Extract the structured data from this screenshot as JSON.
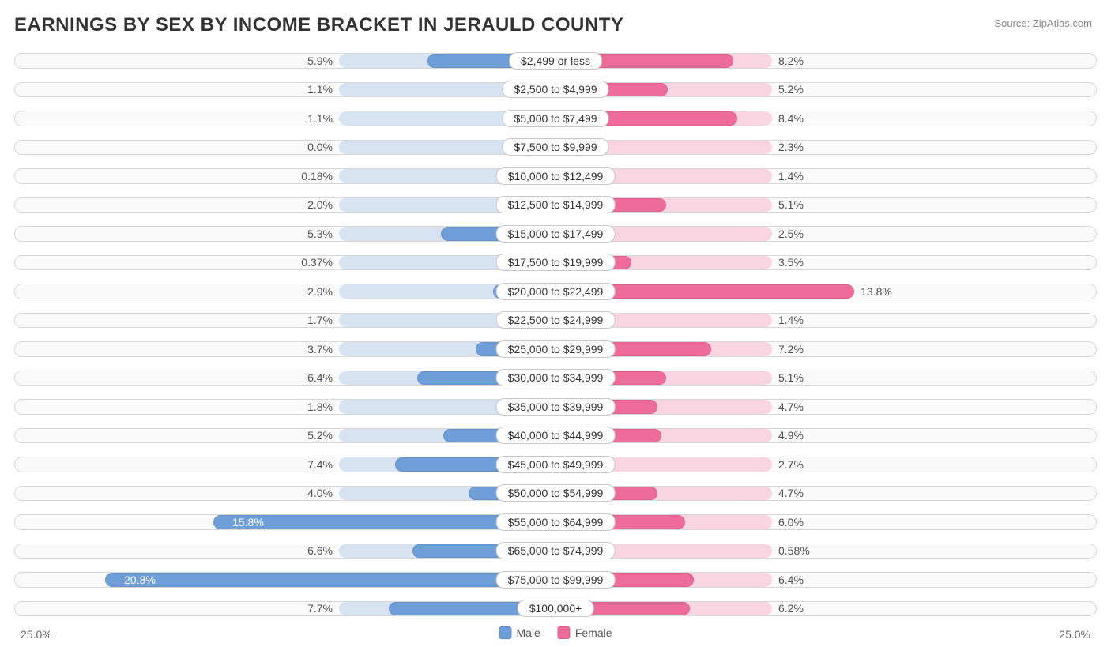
{
  "title": "EARNINGS BY SEX BY INCOME BRACKET IN JERAULD COUNTY",
  "source": "Source: ZipAtlas.com",
  "chart": {
    "type": "diverging-bar",
    "axis_max": 25.0,
    "axis_label_left": "25.0%",
    "axis_label_right": "25.0%",
    "base_bar_pct": 10.0,
    "colors": {
      "male_fill": "#6f9fd8",
      "male_base": "#b9cfe9",
      "female_fill": "#ed6c9a",
      "female_base": "#f6b6cc",
      "row_border": "#d8d8d8",
      "row_bg": "#fafafa",
      "label_border": "#c8c8c8",
      "text": "#333333",
      "pct_text": "#505050",
      "background": "#ffffff"
    },
    "legend": [
      {
        "label": "Male",
        "color": "#6f9fd8"
      },
      {
        "label": "Female",
        "color": "#ed6c9a"
      }
    ],
    "rows": [
      {
        "label": "$2,499 or less",
        "male": 5.9,
        "male_disp": "5.9%",
        "female": 8.2,
        "female_disp": "8.2%"
      },
      {
        "label": "$2,500 to $4,999",
        "male": 1.1,
        "male_disp": "1.1%",
        "female": 5.2,
        "female_disp": "5.2%"
      },
      {
        "label": "$5,000 to $7,499",
        "male": 1.1,
        "male_disp": "1.1%",
        "female": 8.4,
        "female_disp": "8.4%"
      },
      {
        "label": "$7,500 to $9,999",
        "male": 0.0,
        "male_disp": "0.0%",
        "female": 2.3,
        "female_disp": "2.3%"
      },
      {
        "label": "$10,000 to $12,499",
        "male": 0.18,
        "male_disp": "0.18%",
        "female": 1.4,
        "female_disp": "1.4%"
      },
      {
        "label": "$12,500 to $14,999",
        "male": 2.0,
        "male_disp": "2.0%",
        "female": 5.1,
        "female_disp": "5.1%"
      },
      {
        "label": "$15,000 to $17,499",
        "male": 5.3,
        "male_disp": "5.3%",
        "female": 2.5,
        "female_disp": "2.5%"
      },
      {
        "label": "$17,500 to $19,999",
        "male": 0.37,
        "male_disp": "0.37%",
        "female": 3.5,
        "female_disp": "3.5%"
      },
      {
        "label": "$20,000 to $22,499",
        "male": 2.9,
        "male_disp": "2.9%",
        "female": 13.8,
        "female_disp": "13.8%"
      },
      {
        "label": "$22,500 to $24,999",
        "male": 1.7,
        "male_disp": "1.7%",
        "female": 1.4,
        "female_disp": "1.4%"
      },
      {
        "label": "$25,000 to $29,999",
        "male": 3.7,
        "male_disp": "3.7%",
        "female": 7.2,
        "female_disp": "7.2%"
      },
      {
        "label": "$30,000 to $34,999",
        "male": 6.4,
        "male_disp": "6.4%",
        "female": 5.1,
        "female_disp": "5.1%"
      },
      {
        "label": "$35,000 to $39,999",
        "male": 1.8,
        "male_disp": "1.8%",
        "female": 4.7,
        "female_disp": "4.7%"
      },
      {
        "label": "$40,000 to $44,999",
        "male": 5.2,
        "male_disp": "5.2%",
        "female": 4.9,
        "female_disp": "4.9%"
      },
      {
        "label": "$45,000 to $49,999",
        "male": 7.4,
        "male_disp": "7.4%",
        "female": 2.7,
        "female_disp": "2.7%"
      },
      {
        "label": "$50,000 to $54,999",
        "male": 4.0,
        "male_disp": "4.0%",
        "female": 4.7,
        "female_disp": "4.7%"
      },
      {
        "label": "$55,000 to $64,999",
        "male": 15.8,
        "male_disp": "15.8%",
        "female": 6.0,
        "female_disp": "6.0%"
      },
      {
        "label": "$65,000 to $74,999",
        "male": 6.6,
        "male_disp": "6.6%",
        "female": 0.58,
        "female_disp": "0.58%"
      },
      {
        "label": "$75,000 to $99,999",
        "male": 20.8,
        "male_disp": "20.8%",
        "female": 6.4,
        "female_disp": "6.4%"
      },
      {
        "label": "$100,000+",
        "male": 7.7,
        "male_disp": "7.7%",
        "female": 6.2,
        "female_disp": "6.2%"
      }
    ]
  }
}
